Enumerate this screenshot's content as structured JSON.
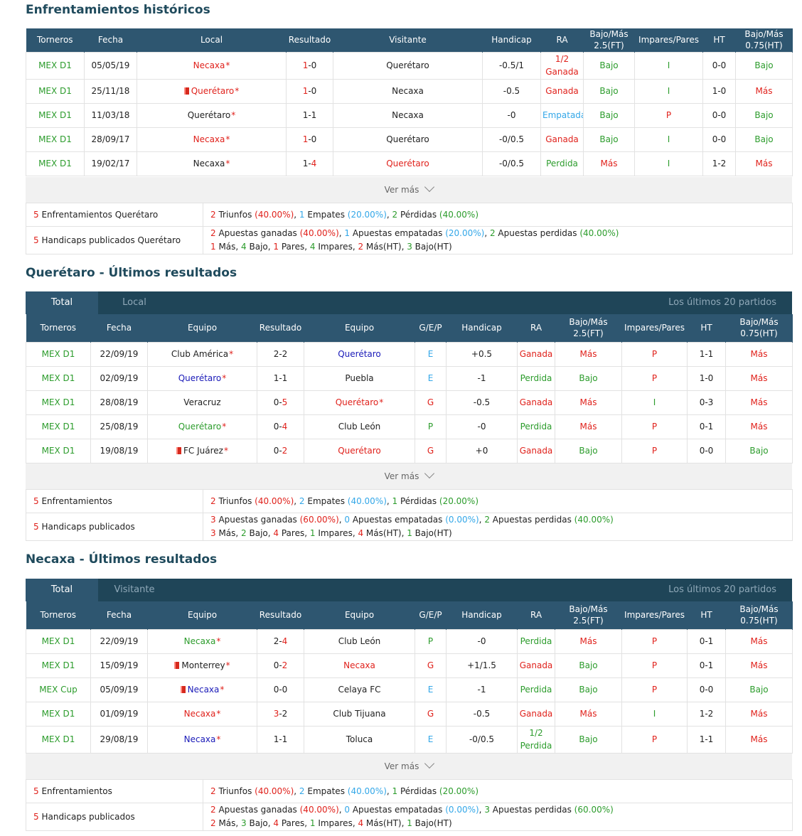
{
  "sections": {
    "h2h": {
      "title": "Enfrentamientos históricos",
      "headers": [
        "Torneros",
        "Fecha",
        "Local",
        "Resultado",
        "Visitante",
        "Handicap",
        "RA",
        "Bajo/Más 2.5(FT)",
        "Impares/Pares",
        "HT",
        "Bajo/Más 0.75(HT)"
      ],
      "rows": [
        {
          "league": "MEX D1",
          "date": "05/05/19",
          "home": "Necaxa",
          "home_color": "red",
          "home_flag": false,
          "home_star": true,
          "res_a": "1",
          "res_a_color": "red",
          "res_b": "0",
          "res_b_color": "",
          "away": "Querétaro",
          "away_color": "",
          "away_star": false,
          "handicap": "-0.5/1",
          "ra": "1/2 Ganada",
          "ra_color": "red",
          "ou": "Bajo",
          "ou_color": "green",
          "op": "I",
          "op_color": "green",
          "ht": "0-0",
          "ht_ou": "Bajo",
          "ht_ou_color": "green"
        },
        {
          "league": "MEX D1",
          "date": "25/11/18",
          "home": "Querétaro",
          "home_color": "red",
          "home_flag": true,
          "home_star": true,
          "res_a": "1",
          "res_a_color": "red",
          "res_b": "0",
          "res_b_color": "",
          "away": "Necaxa",
          "away_color": "",
          "away_star": false,
          "handicap": "-0.5",
          "ra": "Ganada",
          "ra_color": "red",
          "ou": "Bajo",
          "ou_color": "green",
          "op": "I",
          "op_color": "green",
          "ht": "1-0",
          "ht_ou": "Más",
          "ht_ou_color": "red"
        },
        {
          "league": "MEX D1",
          "date": "11/03/18",
          "home": "Querétaro",
          "home_color": "",
          "home_flag": false,
          "home_star": true,
          "res_a": "1",
          "res_a_color": "",
          "res_b": "1",
          "res_b_color": "",
          "away": "Necaxa",
          "away_color": "",
          "away_star": false,
          "handicap": "-0",
          "ra": "Empatada",
          "ra_color": "blue",
          "ou": "Bajo",
          "ou_color": "green",
          "op": "P",
          "op_color": "red",
          "ht": "0-0",
          "ht_ou": "Bajo",
          "ht_ou_color": "green"
        },
        {
          "league": "MEX D1",
          "date": "28/09/17",
          "home": "Necaxa",
          "home_color": "red",
          "home_flag": false,
          "home_star": true,
          "res_a": "1",
          "res_a_color": "red",
          "res_b": "0",
          "res_b_color": "",
          "away": "Querétaro",
          "away_color": "",
          "away_star": false,
          "handicap": "-0/0.5",
          "ra": "Ganada",
          "ra_color": "red",
          "ou": "Bajo",
          "ou_color": "green",
          "op": "I",
          "op_color": "green",
          "ht": "0-0",
          "ht_ou": "Bajo",
          "ht_ou_color": "green"
        },
        {
          "league": "MEX D1",
          "date": "19/02/17",
          "home": "Necaxa",
          "home_color": "",
          "home_flag": false,
          "home_star": true,
          "res_a": "1",
          "res_a_color": "",
          "res_b": "4",
          "res_b_color": "red",
          "away": "Querétaro",
          "away_color": "red",
          "away_star": false,
          "handicap": "-0/0.5",
          "ra": "Perdida",
          "ra_color": "green",
          "ou": "Más",
          "ou_color": "red",
          "op": "I",
          "op_color": "green",
          "ht": "1-2",
          "ht_ou": "Más",
          "ht_ou_color": "red"
        }
      ],
      "more": "Ver más",
      "summary1_label_n": "5",
      "summary1_label": " Enfrentamientos Querétaro",
      "summary1": [
        [
          "2",
          "red",
          " Triunfos "
        ],
        [
          "(40.00%)",
          "red",
          ", "
        ],
        [
          "1",
          "blue",
          " Empates "
        ],
        [
          "(20.00%)",
          "blue",
          ", "
        ],
        [
          "2",
          "green",
          " Pérdidas "
        ],
        [
          "(40.00%)",
          "green",
          ""
        ]
      ],
      "summary2_label_n": "5",
      "summary2_label": " Handicaps publicados Querétaro",
      "summary2_line1": [
        [
          "2",
          "red",
          " Apuestas ganadas "
        ],
        [
          "(40.00%)",
          "red",
          ", "
        ],
        [
          "1",
          "blue",
          " Apuestas empatadas "
        ],
        [
          "(20.00%)",
          "blue",
          ", "
        ],
        [
          "2",
          "green",
          " Apuestas perdidas "
        ],
        [
          "(40.00%)",
          "green",
          ""
        ]
      ],
      "summary2_line2": [
        [
          "1",
          "red",
          " Más, "
        ],
        [
          "4",
          "green",
          " Bajo, "
        ],
        [
          "1",
          "red",
          " Pares, "
        ],
        [
          "4",
          "green",
          " Impares, "
        ],
        [
          "2",
          "red",
          " Más(HT), "
        ],
        [
          "3",
          "green",
          " Bajo(HT)"
        ]
      ]
    },
    "queretaro": {
      "title": "Querétaro - Últimos resultados",
      "tab_active": "Total",
      "tab_inactive": "Local",
      "tab_right": "Los últimos 20 partidos",
      "headers": [
        "Torneros",
        "Fecha",
        "Equipo",
        "Resultado",
        "Equipo",
        "G/E/P",
        "Handicap",
        "RA",
        "Bajo/Más 2.5(FT)",
        "Impares/Pares",
        "HT",
        "Bajo/Más 0.75(HT)"
      ],
      "rows": [
        {
          "league": "MEX D1",
          "date": "22/09/19",
          "home": "Club América",
          "home_color": "",
          "home_flag": false,
          "home_star": true,
          "res_a": "2",
          "res_a_color": "",
          "res_b": "2",
          "res_b_color": "",
          "away": "Querétaro",
          "away_color": "navy",
          "away_star": false,
          "gep": "E",
          "gep_color": "blue",
          "handicap": "+0.5",
          "ra": "Ganada",
          "ra_color": "red",
          "ou": "Más",
          "ou_color": "red",
          "op": "P",
          "op_color": "red",
          "ht": "1-1",
          "ht_ou": "Más",
          "ht_ou_color": "red"
        },
        {
          "league": "MEX D1",
          "date": "02/09/19",
          "home": "Querétaro",
          "home_color": "navy",
          "home_flag": false,
          "home_star": true,
          "res_a": "1",
          "res_a_color": "",
          "res_b": "1",
          "res_b_color": "",
          "away": "Puebla",
          "away_color": "",
          "away_star": false,
          "gep": "E",
          "gep_color": "blue",
          "handicap": "-1",
          "ra": "Perdida",
          "ra_color": "green",
          "ou": "Bajo",
          "ou_color": "green",
          "op": "P",
          "op_color": "red",
          "ht": "1-0",
          "ht_ou": "Más",
          "ht_ou_color": "red"
        },
        {
          "league": "MEX D1",
          "date": "28/08/19",
          "home": "Veracruz",
          "home_color": "",
          "home_flag": false,
          "home_star": false,
          "res_a": "0",
          "res_a_color": "",
          "res_b": "5",
          "res_b_color": "red",
          "away": "Querétaro",
          "away_color": "red",
          "away_star": true,
          "gep": "G",
          "gep_color": "red",
          "handicap": "-0.5",
          "ra": "Ganada",
          "ra_color": "red",
          "ou": "Más",
          "ou_color": "red",
          "op": "I",
          "op_color": "green",
          "ht": "0-3",
          "ht_ou": "Más",
          "ht_ou_color": "red"
        },
        {
          "league": "MEX D1",
          "date": "25/08/19",
          "home": "Querétaro",
          "home_color": "green",
          "home_flag": false,
          "home_star": true,
          "res_a": "0",
          "res_a_color": "",
          "res_b": "4",
          "res_b_color": "red",
          "away": "Club León",
          "away_color": "",
          "away_star": false,
          "gep": "P",
          "gep_color": "green",
          "handicap": "-0",
          "ra": "Perdida",
          "ra_color": "green",
          "ou": "Más",
          "ou_color": "red",
          "op": "P",
          "op_color": "red",
          "ht": "0-1",
          "ht_ou": "Más",
          "ht_ou_color": "red"
        },
        {
          "league": "MEX D1",
          "date": "19/08/19",
          "home": "FC Juárez",
          "home_color": "",
          "home_flag": true,
          "home_star": true,
          "res_a": "0",
          "res_a_color": "",
          "res_b": "2",
          "res_b_color": "red",
          "away": "Querétaro",
          "away_color": "red",
          "away_star": false,
          "gep": "G",
          "gep_color": "red",
          "handicap": "+0",
          "ra": "Ganada",
          "ra_color": "red",
          "ou": "Bajo",
          "ou_color": "green",
          "op": "P",
          "op_color": "red",
          "ht": "0-0",
          "ht_ou": "Bajo",
          "ht_ou_color": "green"
        }
      ],
      "more": "Ver más",
      "summary1_label_n": "5",
      "summary1_label": " Enfrentamientos",
      "summary1": [
        [
          "2",
          "red",
          " Triunfos "
        ],
        [
          "(40.00%)",
          "red",
          ", "
        ],
        [
          "2",
          "blue",
          " Empates "
        ],
        [
          "(40.00%)",
          "blue",
          ", "
        ],
        [
          "1",
          "green",
          " Pérdidas "
        ],
        [
          "(20.00%)",
          "green",
          ""
        ]
      ],
      "summary2_label_n": "5",
      "summary2_label": " Handicaps publicados",
      "summary2_line1": [
        [
          "3",
          "red",
          " Apuestas ganadas "
        ],
        [
          "(60.00%)",
          "red",
          ", "
        ],
        [
          "0",
          "blue",
          " Apuestas empatadas "
        ],
        [
          "(0.00%)",
          "blue",
          ", "
        ],
        [
          "2",
          "green",
          " Apuestas perdidas "
        ],
        [
          "(40.00%)",
          "green",
          ""
        ]
      ],
      "summary2_line2": [
        [
          "3",
          "red",
          " Más, "
        ],
        [
          "2",
          "green",
          " Bajo, "
        ],
        [
          "4",
          "red",
          " Pares, "
        ],
        [
          "1",
          "green",
          " Impares, "
        ],
        [
          "4",
          "red",
          " Más(HT), "
        ],
        [
          "1",
          "green",
          " Bajo(HT)"
        ]
      ]
    },
    "necaxa": {
      "title": "Necaxa - Últimos resultados",
      "tab_active": "Total",
      "tab_inactive": "Visitante",
      "tab_right": "Los últimos 20 partidos",
      "headers": [
        "Torneros",
        "Fecha",
        "Equipo",
        "Resultado",
        "Equipo",
        "G/E/P",
        "Handicap",
        "RA",
        "Bajo/Más 2.5(FT)",
        "Impares/Pares",
        "HT",
        "Bajo/Más 0.75(HT)"
      ],
      "rows": [
        {
          "league": "MEX D1",
          "date": "22/09/19",
          "home": "Necaxa",
          "home_color": "green",
          "home_flag": false,
          "home_star": true,
          "res_a": "2",
          "res_a_color": "",
          "res_b": "4",
          "res_b_color": "red",
          "away": "Club León",
          "away_color": "",
          "away_star": false,
          "gep": "P",
          "gep_color": "green",
          "handicap": "-0",
          "ra": "Perdida",
          "ra_color": "green",
          "ou": "Más",
          "ou_color": "red",
          "op": "P",
          "op_color": "red",
          "ht": "0-1",
          "ht_ou": "Más",
          "ht_ou_color": "red"
        },
        {
          "league": "MEX D1",
          "date": "15/09/19",
          "home": "Monterrey",
          "home_color": "",
          "home_flag": true,
          "home_star": true,
          "res_a": "0",
          "res_a_color": "",
          "res_b": "2",
          "res_b_color": "red",
          "away": "Necaxa",
          "away_color": "red",
          "away_star": false,
          "gep": "G",
          "gep_color": "red",
          "handicap": "+1/1.5",
          "ra": "Ganada",
          "ra_color": "red",
          "ou": "Bajo",
          "ou_color": "green",
          "op": "P",
          "op_color": "red",
          "ht": "0-1",
          "ht_ou": "Más",
          "ht_ou_color": "red"
        },
        {
          "league": "MEX Cup",
          "date": "05/09/19",
          "home": "Necaxa",
          "home_color": "navy",
          "home_flag": true,
          "home_star": true,
          "res_a": "0",
          "res_a_color": "",
          "res_b": "0",
          "res_b_color": "",
          "away": "Celaya FC",
          "away_color": "",
          "away_star": false,
          "gep": "E",
          "gep_color": "blue",
          "handicap": "-1",
          "ra": "Perdida",
          "ra_color": "green",
          "ou": "Bajo",
          "ou_color": "green",
          "op": "P",
          "op_color": "red",
          "ht": "0-0",
          "ht_ou": "Bajo",
          "ht_ou_color": "green"
        },
        {
          "league": "MEX D1",
          "date": "01/09/19",
          "home": "Necaxa",
          "home_color": "red",
          "home_flag": false,
          "home_star": true,
          "res_a": "3",
          "res_a_color": "red",
          "res_b": "2",
          "res_b_color": "",
          "away": "Club Tijuana",
          "away_color": "",
          "away_star": false,
          "gep": "G",
          "gep_color": "red",
          "handicap": "-0.5",
          "ra": "Ganada",
          "ra_color": "red",
          "ou": "Más",
          "ou_color": "red",
          "op": "I",
          "op_color": "green",
          "ht": "1-2",
          "ht_ou": "Más",
          "ht_ou_color": "red"
        },
        {
          "league": "MEX D1",
          "date": "29/08/19",
          "home": "Necaxa",
          "home_color": "navy",
          "home_flag": false,
          "home_star": true,
          "res_a": "1",
          "res_a_color": "",
          "res_b": "1",
          "res_b_color": "",
          "away": "Toluca",
          "away_color": "",
          "away_star": false,
          "gep": "E",
          "gep_color": "blue",
          "handicap": "-0/0.5",
          "ra": "1/2 Perdida",
          "ra_color": "green",
          "ou": "Bajo",
          "ou_color": "green",
          "op": "P",
          "op_color": "red",
          "ht": "1-1",
          "ht_ou": "Más",
          "ht_ou_color": "red"
        }
      ],
      "more": "Ver más",
      "summary1_label_n": "5",
      "summary1_label": " Enfrentamientos",
      "summary1": [
        [
          "2",
          "red",
          " Triunfos "
        ],
        [
          "(40.00%)",
          "red",
          ", "
        ],
        [
          "2",
          "blue",
          " Empates "
        ],
        [
          "(40.00%)",
          "blue",
          ", "
        ],
        [
          "1",
          "green",
          " Pérdidas "
        ],
        [
          "(20.00%)",
          "green",
          ""
        ]
      ],
      "summary2_label_n": "5",
      "summary2_label": " Handicaps publicados",
      "summary2_line1": [
        [
          "2",
          "red",
          " Apuestas ganadas "
        ],
        [
          "(40.00%)",
          "red",
          ", "
        ],
        [
          "0",
          "blue",
          " Apuestas empatadas "
        ],
        [
          "(0.00%)",
          "blue",
          ", "
        ],
        [
          "3",
          "green",
          " Apuestas perdidas "
        ],
        [
          "(60.00%)",
          "green",
          ""
        ]
      ],
      "summary2_line2": [
        [
          "2",
          "red",
          " Más, "
        ],
        [
          "3",
          "green",
          " Bajo, "
        ],
        [
          "4",
          "red",
          " Pares, "
        ],
        [
          "1",
          "green",
          " Impares, "
        ],
        [
          "4",
          "red",
          " Más(HT), "
        ],
        [
          "1",
          "green",
          " Bajo(HT)"
        ]
      ]
    }
  },
  "colors": {
    "header_bg": "#2e5670",
    "tabs_bg": "#1f4558",
    "red": "#e0221c",
    "green": "#2c9c2c",
    "blue": "#33a7e8",
    "navy": "#1a1ab8"
  },
  "icons": {
    "more": "chevron-down-icon",
    "flag": "red-card-icon"
  }
}
